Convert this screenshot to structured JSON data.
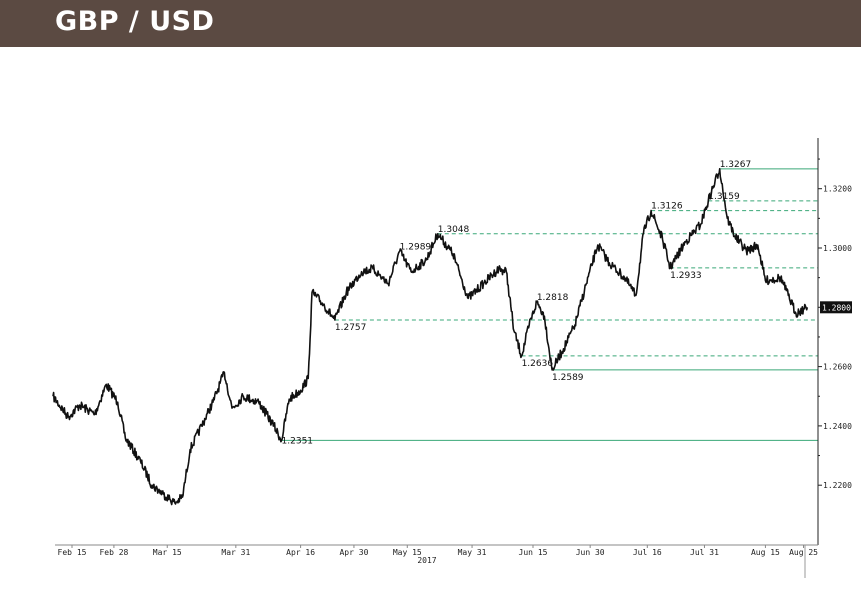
{
  "header": {
    "title": "GBP / USD"
  },
  "chart_data": {
    "type": "line",
    "title": "GBP / USD",
    "year_label": "2017",
    "xlabel": "",
    "ylabel": "",
    "ylim": [
      1.2,
      1.335
    ],
    "yticks": [
      "1.2200",
      "1.2400",
      "1.2600",
      "1.2800",
      "1.3000",
      "1.3200"
    ],
    "ytick_values": [
      1.22,
      1.24,
      1.26,
      1.28,
      1.3,
      1.32
    ],
    "xticks": [
      {
        "label": "Feb 15",
        "date": "2017-02-15"
      },
      {
        "label": "Feb 28",
        "date": "2017-02-26"
      },
      {
        "label": "Mar 15",
        "date": "2017-03-12"
      },
      {
        "label": "Mar 31",
        "date": "2017-03-30"
      },
      {
        "label": "Apr 16",
        "date": "2017-04-16"
      },
      {
        "label": "Apr 30",
        "date": "2017-04-30"
      },
      {
        "label": "May 15",
        "date": "2017-05-14"
      },
      {
        "label": "May 31",
        "date": "2017-05-31"
      },
      {
        "label": "Jun 15",
        "date": "2017-06-16"
      },
      {
        "label": "Jun 30",
        "date": "2017-07-01"
      },
      {
        "label": "Jul 16",
        "date": "2017-07-16"
      },
      {
        "label": "Jul 31",
        "date": "2017-07-31"
      },
      {
        "label": "Aug 15",
        "date": "2017-08-16"
      },
      {
        "label": "Aug 25",
        "date": "2017-08-26"
      }
    ],
    "current_value": "1.2800",
    "grid": false,
    "series": [
      {
        "color": "#111111",
        "points": [
          [
            "2017-02-10",
            1.25
          ],
          [
            "2017-02-14",
            1.243
          ],
          [
            "2017-02-17",
            1.247
          ],
          [
            "2017-02-21",
            1.244
          ],
          [
            "2017-02-24",
            1.254
          ],
          [
            "2017-02-27",
            1.248
          ],
          [
            "2017-03-01",
            1.236
          ],
          [
            "2017-03-05",
            1.228
          ],
          [
            "2017-03-08",
            1.22
          ],
          [
            "2017-03-11",
            1.217
          ],
          [
            "2017-03-14",
            1.214
          ],
          [
            "2017-03-16",
            1.216
          ],
          [
            "2017-03-18",
            1.232
          ],
          [
            "2017-03-21",
            1.24
          ],
          [
            "2017-03-24",
            1.248
          ],
          [
            "2017-03-27",
            1.258
          ],
          [
            "2017-03-29",
            1.246
          ],
          [
            "2017-04-01",
            1.25
          ],
          [
            "2017-04-05",
            1.248
          ],
          [
            "2017-04-09",
            1.24
          ],
          [
            "2017-04-11",
            1.2351
          ],
          [
            "2017-04-13",
            1.249
          ],
          [
            "2017-04-16",
            1.252
          ],
          [
            "2017-04-18",
            1.256
          ],
          [
            "2017-04-19",
            1.285
          ],
          [
            "2017-04-22",
            1.281
          ],
          [
            "2017-04-25",
            1.2757
          ],
          [
            "2017-04-28",
            1.285
          ],
          [
            "2017-05-02",
            1.292
          ],
          [
            "2017-05-05",
            1.293
          ],
          [
            "2017-05-09",
            1.288
          ],
          [
            "2017-05-12",
            1.2989
          ],
          [
            "2017-05-15",
            1.292
          ],
          [
            "2017-05-19",
            1.296
          ],
          [
            "2017-05-22",
            1.3048
          ],
          [
            "2017-05-26",
            1.298
          ],
          [
            "2017-05-30",
            1.283
          ],
          [
            "2017-06-03",
            1.288
          ],
          [
            "2017-06-07",
            1.293
          ],
          [
            "2017-06-09",
            1.292
          ],
          [
            "2017-06-11",
            1.272
          ],
          [
            "2017-06-13",
            1.2636
          ],
          [
            "2017-06-15",
            1.274
          ],
          [
            "2017-06-17",
            1.2818
          ],
          [
            "2017-06-19",
            1.277
          ],
          [
            "2017-06-21",
            1.2589
          ],
          [
            "2017-06-24",
            1.266
          ],
          [
            "2017-06-27",
            1.274
          ],
          [
            "2017-06-30",
            1.288
          ],
          [
            "2017-07-03",
            1.301
          ],
          [
            "2017-07-06",
            1.295
          ],
          [
            "2017-07-10",
            1.29
          ],
          [
            "2017-07-13",
            1.284
          ],
          [
            "2017-07-15",
            1.305
          ],
          [
            "2017-07-17",
            1.3126
          ],
          [
            "2017-07-20",
            1.303
          ],
          [
            "2017-07-22",
            1.2933
          ],
          [
            "2017-07-26",
            1.302
          ],
          [
            "2017-07-30",
            1.308
          ],
          [
            "2017-08-01",
            1.3159
          ],
          [
            "2017-08-04",
            1.3267
          ],
          [
            "2017-08-06",
            1.31
          ],
          [
            "2017-08-08",
            1.304
          ],
          [
            "2017-08-11",
            1.299
          ],
          [
            "2017-08-14",
            1.301
          ],
          [
            "2017-08-16",
            1.289
          ],
          [
            "2017-08-20",
            1.29
          ],
          [
            "2017-08-22",
            1.284
          ],
          [
            "2017-08-24",
            1.278
          ],
          [
            "2017-08-27",
            1.28
          ]
        ]
      }
    ],
    "reference_lines": [
      {
        "value": 1.3267,
        "start": "2017-08-04",
        "style": "solid"
      },
      {
        "value": 1.3159,
        "start": "2017-08-01",
        "style": "dashed"
      },
      {
        "value": 1.3126,
        "start": "2017-07-17",
        "style": "dashed"
      },
      {
        "value": 1.3048,
        "start": "2017-05-22",
        "style": "dashed"
      },
      {
        "value": 1.2933,
        "start": "2017-07-22",
        "style": "dashed"
      },
      {
        "value": 1.2757,
        "start": "2017-04-25",
        "style": "dashed"
      },
      {
        "value": 1.2636,
        "start": "2017-06-13",
        "style": "dashed"
      },
      {
        "value": 1.2589,
        "start": "2017-06-21",
        "style": "solid"
      },
      {
        "value": 1.2351,
        "start": "2017-04-11",
        "style": "solid"
      }
    ],
    "reference_color": "#3aa878",
    "annotations": [
      {
        "label": "1.3267",
        "date": "2017-08-04",
        "value": 1.3267
      },
      {
        "label": "1.3159",
        "date": "2017-08-01",
        "value": 1.3159
      },
      {
        "label": "1.3126",
        "date": "2017-07-17",
        "value": 1.3126
      },
      {
        "label": "1.3048",
        "date": "2017-05-22",
        "value": 1.3048
      },
      {
        "label": "1.2989",
        "date": "2017-05-12",
        "value": 1.2989
      },
      {
        "label": "1.2933",
        "date": "2017-07-22",
        "value": 1.2933
      },
      {
        "label": "1.2818",
        "date": "2017-06-17",
        "value": 1.2818
      },
      {
        "label": "1.2757",
        "date": "2017-04-25",
        "value": 1.2757
      },
      {
        "label": "1.2636",
        "date": "2017-06-13",
        "value": 1.2636
      },
      {
        "label": "1.2589",
        "date": "2017-06-21",
        "value": 1.2589
      },
      {
        "label": "1.2351",
        "date": "2017-04-11",
        "value": 1.2351
      }
    ]
  }
}
